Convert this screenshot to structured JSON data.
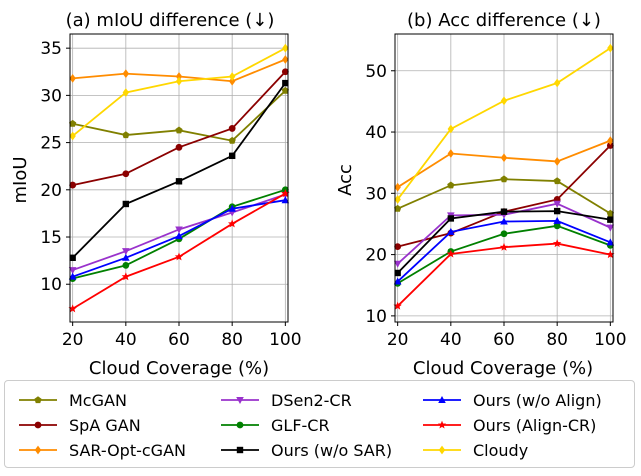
{
  "chart_data": [
    {
      "type": "line",
      "title": "(a) mIoU difference (↓)",
      "xlabel": "Cloud Coverage (%)",
      "ylabel": "mIoU",
      "x": [
        20,
        40,
        60,
        80,
        100
      ],
      "xticks": [
        "20",
        "40",
        "60",
        "80",
        "100"
      ],
      "yticks": [
        "10",
        "15",
        "20",
        "25",
        "30",
        "35"
      ],
      "xlim": [
        19,
        101
      ],
      "ylim": [
        6,
        36.5
      ],
      "grid": true,
      "series": [
        {
          "name": "McGAN",
          "color": "#808000",
          "marker": "pentagon",
          "values": [
            27.0,
            25.8,
            26.3,
            25.2,
            30.5
          ]
        },
        {
          "name": "SpA GAN",
          "color": "#8b0000",
          "marker": "circle",
          "values": [
            20.5,
            21.7,
            24.5,
            26.5,
            32.5
          ]
        },
        {
          "name": "SAR-Opt-cGAN",
          "color": "#ff8c00",
          "marker": "diamond",
          "values": [
            31.8,
            32.3,
            32.0,
            31.5,
            33.8
          ]
        },
        {
          "name": "DSen2-CR",
          "color": "#9932cc",
          "marker": "triangle-down",
          "values": [
            11.5,
            13.5,
            15.8,
            17.6,
            19.5
          ]
        },
        {
          "name": "GLF-CR",
          "color": "#008000",
          "marker": "circle",
          "values": [
            10.6,
            12.0,
            14.8,
            18.2,
            20.0
          ]
        },
        {
          "name": "Ours (w/o SAR)",
          "color": "#000000",
          "marker": "square",
          "values": [
            12.8,
            18.5,
            20.9,
            23.6,
            31.3
          ]
        },
        {
          "name": "Ours (w/o Align)",
          "color": "#0000ff",
          "marker": "triangle-up",
          "values": [
            10.8,
            12.8,
            15.1,
            18.0,
            18.9
          ]
        },
        {
          "name": "Ours (Align-CR)",
          "color": "#ff0000",
          "marker": "star",
          "values": [
            7.4,
            10.8,
            12.9,
            16.4,
            19.6
          ]
        },
        {
          "name": "Cloudy",
          "color": "#ffd700",
          "marker": "diamond",
          "values": [
            25.7,
            30.3,
            31.5,
            32.0,
            35.0
          ]
        }
      ]
    },
    {
      "type": "line",
      "title": "(b) Acc difference (↓)",
      "xlabel": "Cloud Coverage (%)",
      "ylabel": "Acc",
      "x": [
        20,
        40,
        60,
        80,
        100
      ],
      "xticks": [
        "20",
        "40",
        "60",
        "80",
        "100"
      ],
      "yticks": [
        "10",
        "20",
        "30",
        "40",
        "50"
      ],
      "xlim": [
        19,
        101
      ],
      "ylim": [
        9,
        56
      ],
      "grid": true,
      "series": [
        {
          "name": "McGAN",
          "color": "#808000",
          "marker": "pentagon",
          "values": [
            27.5,
            31.3,
            32.3,
            32.0,
            26.7
          ]
        },
        {
          "name": "SpA GAN",
          "color": "#8b0000",
          "marker": "circle",
          "values": [
            21.3,
            23.5,
            27.0,
            29.0,
            37.8
          ]
        },
        {
          "name": "SAR-Opt-cGAN",
          "color": "#ff8c00",
          "marker": "diamond",
          "values": [
            31.0,
            36.5,
            35.8,
            35.2,
            38.6
          ]
        },
        {
          "name": "DSen2-CR",
          "color": "#9932cc",
          "marker": "triangle-down",
          "values": [
            18.5,
            26.4,
            26.5,
            28.3,
            24.4
          ]
        },
        {
          "name": "GLF-CR",
          "color": "#008000",
          "marker": "circle",
          "values": [
            15.3,
            20.5,
            23.4,
            24.7,
            21.5
          ]
        },
        {
          "name": "Ours (w/o SAR)",
          "color": "#000000",
          "marker": "square",
          "values": [
            17.0,
            25.9,
            27.0,
            27.1,
            25.7
          ]
        },
        {
          "name": "Ours (w/o Align)",
          "color": "#0000ff",
          "marker": "triangle-up",
          "values": [
            15.6,
            23.7,
            25.4,
            25.5,
            22.0
          ]
        },
        {
          "name": "Ours (Align-CR)",
          "color": "#ff0000",
          "marker": "star",
          "values": [
            11.6,
            20.1,
            21.2,
            21.8,
            20.0
          ]
        },
        {
          "name": "Cloudy",
          "color": "#ffd700",
          "marker": "diamond",
          "values": [
            29.0,
            40.5,
            45.1,
            48.0,
            53.7
          ]
        }
      ]
    }
  ],
  "legend": {
    "items": [
      "McGAN",
      "SpA GAN",
      "SAR-Opt-cGAN",
      "DSen2-CR",
      "GLF-CR",
      "Ours (w/o SAR)",
      "Ours (w/o Align)",
      "Ours (Align-CR)",
      "Cloudy"
    ]
  }
}
